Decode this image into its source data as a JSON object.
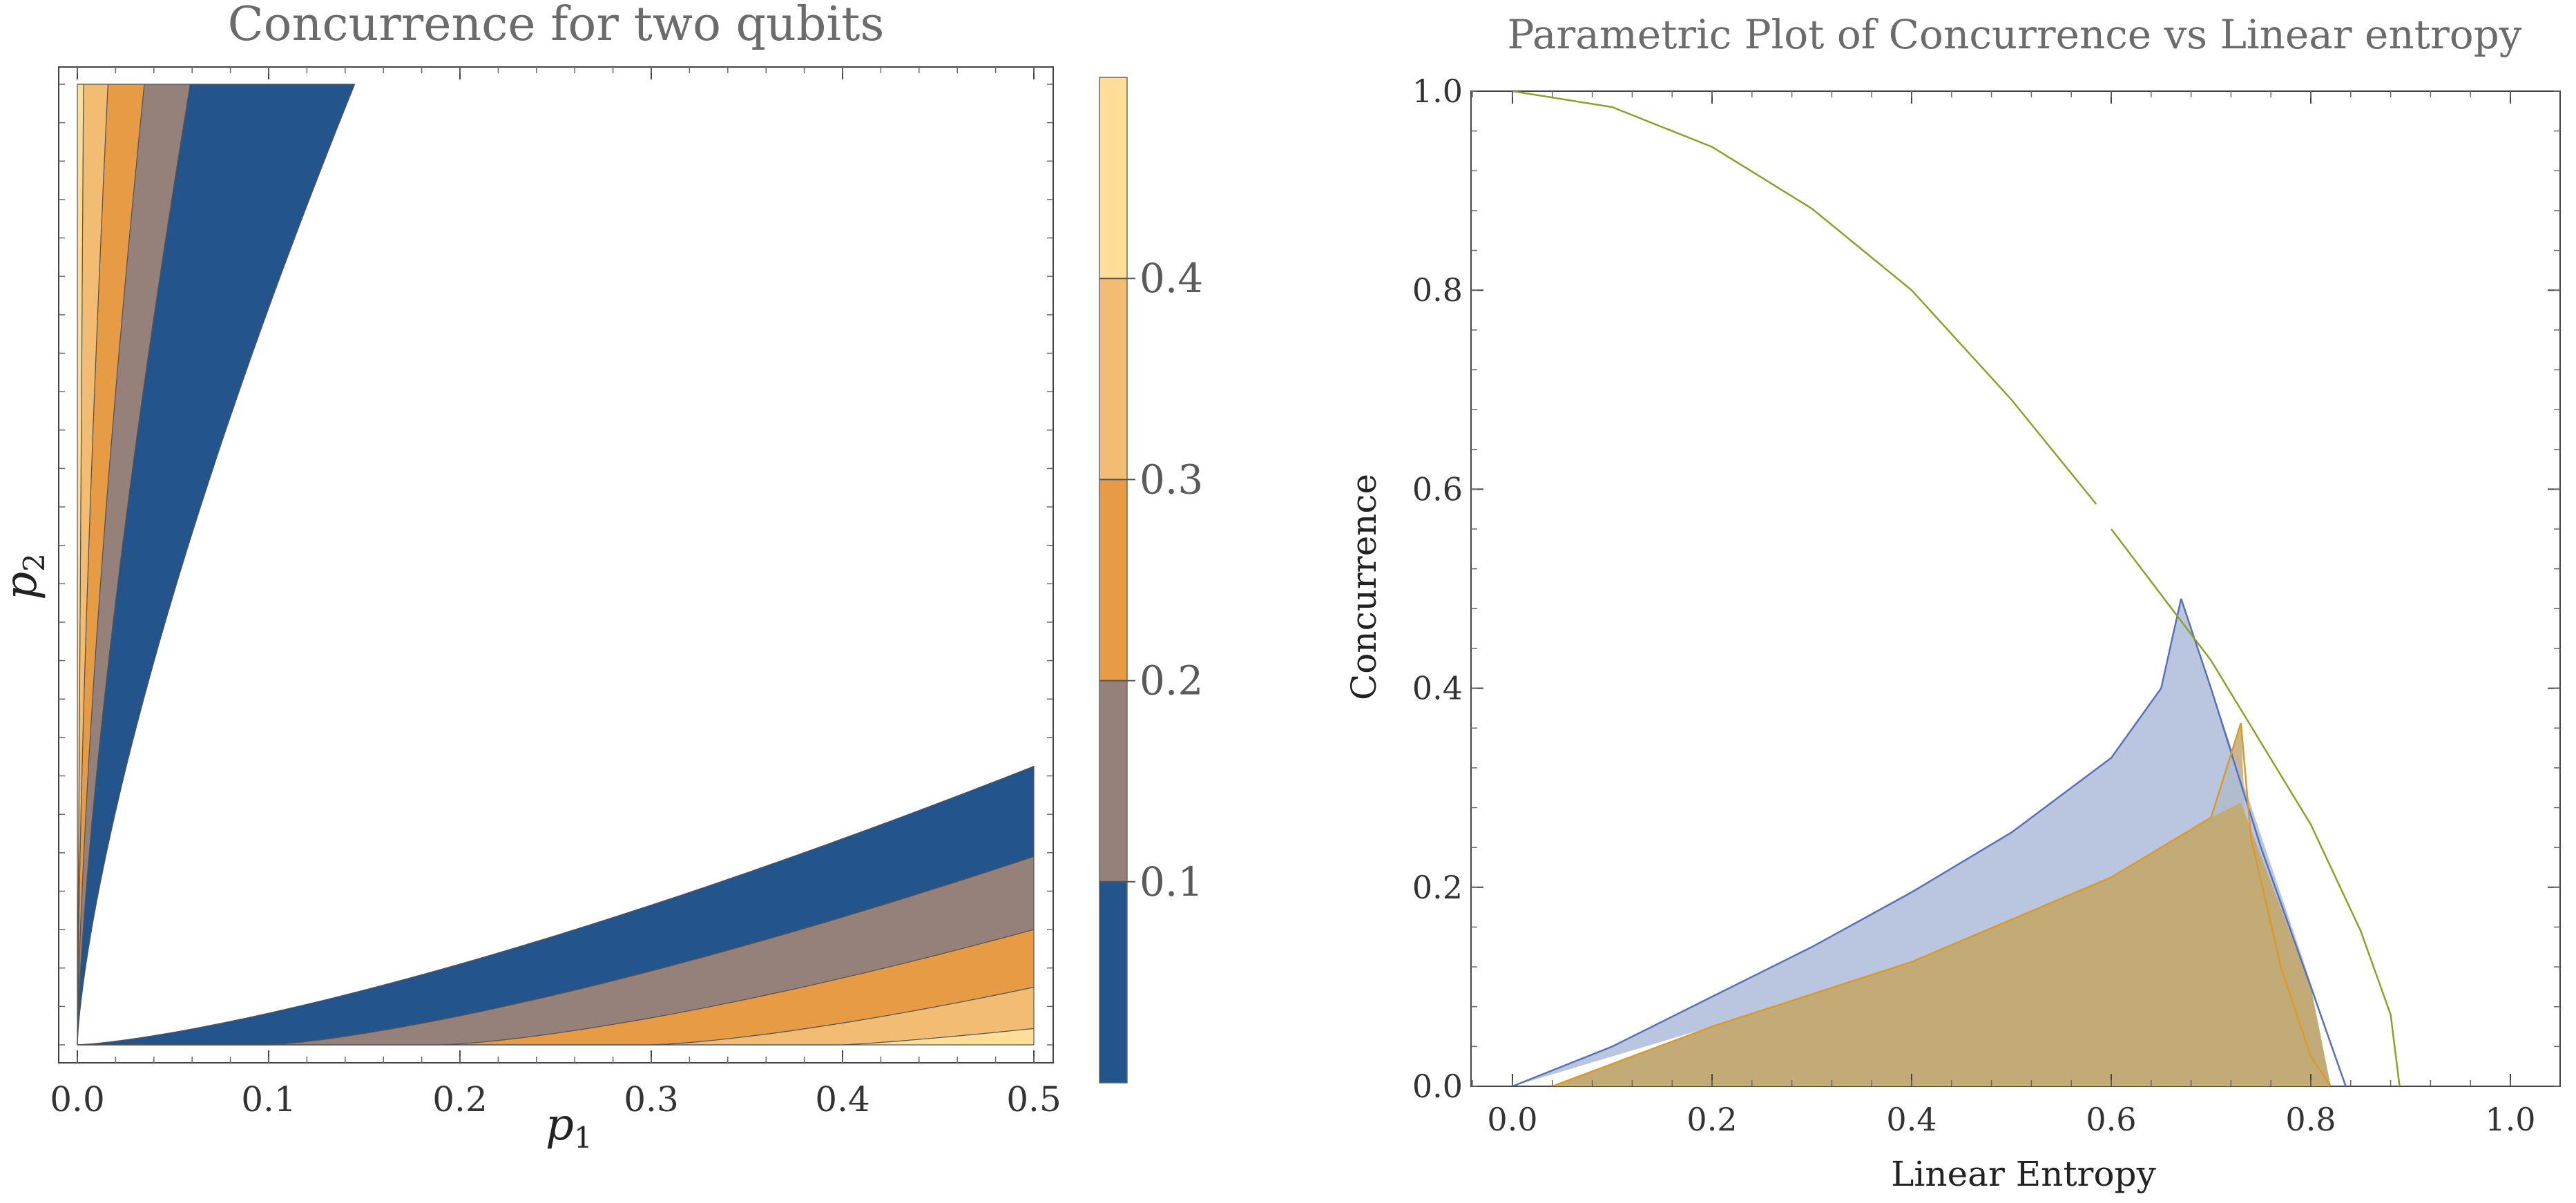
{
  "colors": {
    "band_0_0_1": "#23558c",
    "band_0_1_0_2": "#95817a",
    "band_0_2_0_3": "#e79b44",
    "band_0_3_0_4": "#f2bd72",
    "band_0_4_0_5": "#ffdf98",
    "blue_region": "#aebcdb",
    "blue_edge": "#5772b4",
    "orange_region": "#c2ab76",
    "orange_edge": "#d99a2c",
    "green_curve": "#8aa12a",
    "frame": "#444444"
  },
  "chart_data": [
    {
      "type": "contour",
      "title": "Concurrence for two qubits",
      "xlabel": "p",
      "xlabel_sub": "1",
      "ylabel": "p",
      "ylabel_sub": "2",
      "xlim": [
        0.0,
        0.5
      ],
      "ylim": [
        0.0,
        0.5
      ],
      "x_tick_labels": [
        "0.0",
        "0.1",
        "0.2",
        "0.3",
        "0.4",
        "0.5"
      ],
      "x_ticks": [
        0.0,
        0.1,
        0.2,
        0.3,
        0.4,
        0.5
      ],
      "colorbar": {
        "range": [
          0.0,
          0.5
        ],
        "levels": [
          0.1,
          0.2,
          0.3,
          0.4
        ],
        "tick_labels": [
          "0.1",
          "0.2",
          "0.3",
          "0.4"
        ]
      },
      "regions": [
        {
          "name": "upper-left lobe",
          "bands": [
            "0-0.1",
            "0.1-0.2",
            "0.2-0.3",
            "0.3-0.4",
            "0.4-0.5"
          ]
        },
        {
          "name": "lower-right lobe",
          "bands": [
            "0-0.1",
            "0.1-0.2",
            "0.2-0.3",
            "0.3-0.4",
            "0.4-0.5"
          ]
        }
      ]
    },
    {
      "type": "line",
      "title": "Parametric Plot of Concurrence vs Linear entropy",
      "xlabel": "Linear Entropy",
      "ylabel": "Concurrence",
      "xlim": [
        -0.05,
        1.05
      ],
      "ylim": [
        0.0,
        1.0
      ],
      "x_ticks": [
        0.0,
        0.2,
        0.4,
        0.6,
        0.8,
        1.0
      ],
      "x_tick_labels": [
        "0.0",
        "0.2",
        "0.4",
        "0.6",
        "0.8",
        "1.0"
      ],
      "y_ticks": [
        0.0,
        0.2,
        0.4,
        0.6,
        0.8,
        1.0
      ],
      "y_tick_labels": [
        "0.0",
        "0.2",
        "0.4",
        "0.6",
        "0.8",
        "1.0"
      ],
      "series": [
        {
          "name": "green curve",
          "type": "line",
          "points": [
            [
              0.0,
              1.0
            ],
            [
              0.1,
              0.984
            ],
            [
              0.2,
              0.944
            ],
            [
              0.3,
              0.882
            ],
            [
              0.4,
              0.8
            ],
            [
              0.5,
              0.69
            ],
            [
              0.6,
              0.56
            ],
            [
              0.7,
              0.428
            ],
            [
              0.8,
              0.263
            ],
            [
              0.85,
              0.156
            ],
            [
              0.88,
              0.072
            ],
            [
              0.889,
              0.0
            ]
          ]
        },
        {
          "name": "blue region",
          "type": "area",
          "upper": [
            [
              0.0,
              0.0
            ],
            [
              0.1,
              0.04
            ],
            [
              0.2,
              0.09
            ],
            [
              0.3,
              0.14
            ],
            [
              0.4,
              0.195
            ],
            [
              0.5,
              0.255
            ],
            [
              0.6,
              0.33
            ],
            [
              0.65,
              0.4
            ],
            [
              0.67,
              0.49
            ]
          ],
          "lower": [
            [
              0.0,
              0.0
            ],
            [
              0.2,
              0.06
            ],
            [
              0.4,
              0.125
            ],
            [
              0.6,
              0.21
            ],
            [
              0.73,
              0.285
            ],
            [
              0.8,
              0.1
            ],
            [
              0.835,
              0.0
            ]
          ]
        },
        {
          "name": "orange region",
          "type": "area",
          "upper": [
            [
              0.04,
              0.0
            ],
            [
              0.2,
              0.06
            ],
            [
              0.4,
              0.125
            ],
            [
              0.6,
              0.21
            ],
            [
              0.7,
              0.27
            ],
            [
              0.73,
              0.365
            ]
          ],
          "lower": [
            [
              0.04,
              0.0
            ],
            [
              0.82,
              0.0
            ]
          ]
        }
      ]
    }
  ]
}
